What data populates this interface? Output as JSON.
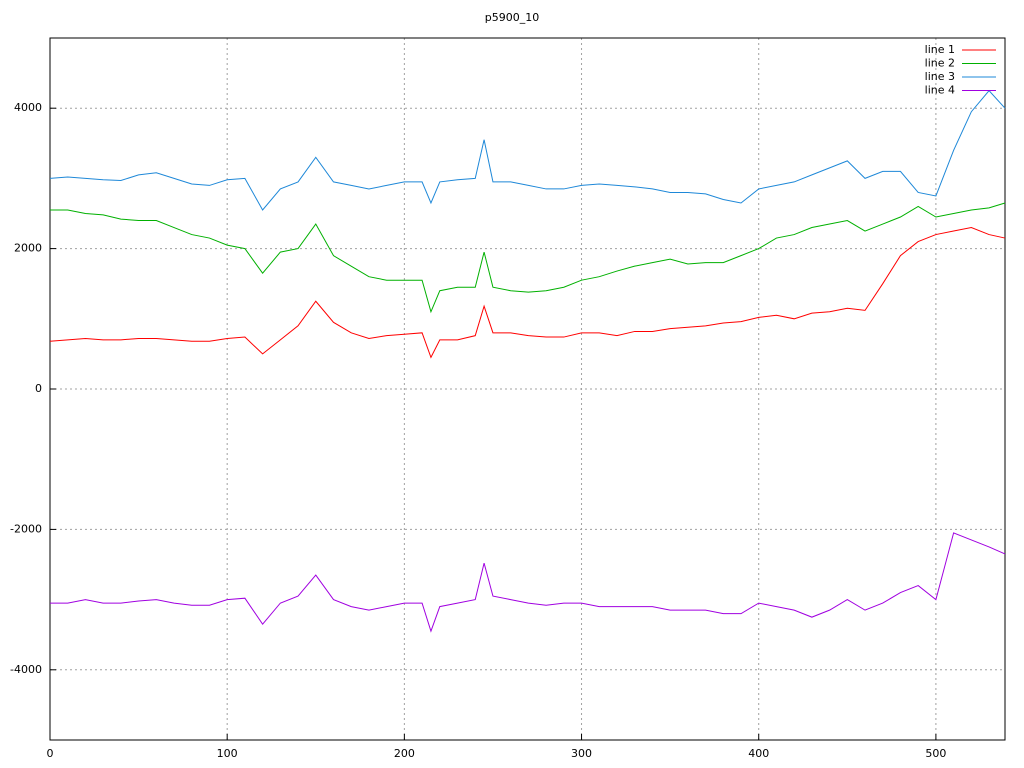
{
  "chart_data": {
    "type": "line",
    "title": "p5900_10",
    "x": [
      0,
      10,
      20,
      30,
      40,
      50,
      60,
      70,
      80,
      90,
      100,
      110,
      120,
      130,
      140,
      150,
      160,
      170,
      180,
      190,
      200,
      210,
      215,
      220,
      230,
      240,
      245,
      250,
      260,
      270,
      280,
      290,
      300,
      310,
      320,
      330,
      340,
      350,
      360,
      370,
      380,
      390,
      400,
      410,
      420,
      430,
      440,
      450,
      460,
      470,
      480,
      490,
      500,
      510,
      520,
      530,
      539
    ],
    "series": [
      {
        "name": "line 1",
        "color": "#ff0000",
        "values": [
          680,
          700,
          720,
          700,
          700,
          720,
          720,
          700,
          680,
          680,
          720,
          740,
          500,
          700,
          900,
          1250,
          950,
          800,
          720,
          760,
          780,
          800,
          450,
          700,
          700,
          760,
          1180,
          800,
          800,
          760,
          740,
          740,
          800,
          800,
          760,
          820,
          820,
          860,
          880,
          900,
          940,
          960,
          1020,
          1050,
          1000,
          1080,
          1100,
          1150,
          1120,
          1500,
          1900,
          2100,
          2200,
          2250,
          2300,
          2200,
          2150
        ]
      },
      {
        "name": "line 2",
        "color": "#00b000",
        "values": [
          2550,
          2550,
          2500,
          2480,
          2420,
          2400,
          2400,
          2300,
          2200,
          2150,
          2050,
          2000,
          1650,
          1950,
          2000,
          2350,
          1900,
          1750,
          1600,
          1550,
          1550,
          1550,
          1100,
          1400,
          1450,
          1450,
          1950,
          1450,
          1400,
          1380,
          1400,
          1450,
          1550,
          1600,
          1680,
          1750,
          1800,
          1850,
          1780,
          1800,
          1800,
          1900,
          2000,
          2150,
          2200,
          2300,
          2350,
          2400,
          2250,
          2350,
          2450,
          2600,
          2450,
          2500,
          2550,
          2580,
          2650
        ]
      },
      {
        "name": "line 3",
        "color": "#1e88d8",
        "values": [
          3000,
          3020,
          3000,
          2980,
          2970,
          3050,
          3080,
          3000,
          2920,
          2900,
          2980,
          3000,
          2550,
          2850,
          2950,
          3300,
          2950,
          2900,
          2850,
          2900,
          2950,
          2950,
          2650,
          2950,
          2980,
          3000,
          3550,
          2950,
          2950,
          2900,
          2850,
          2850,
          2900,
          2920,
          2900,
          2880,
          2850,
          2800,
          2800,
          2780,
          2700,
          2650,
          2850,
          2900,
          2950,
          3050,
          3150,
          3250,
          3000,
          3100,
          3100,
          2800,
          2750,
          3400,
          3950,
          4250,
          4000
        ]
      },
      {
        "name": "line 4",
        "color": "#a000e0",
        "values": [
          -3050,
          -3050,
          -3000,
          -3050,
          -3050,
          -3020,
          -3000,
          -3050,
          -3080,
          -3080,
          -3000,
          -2980,
          -3350,
          -3050,
          -2950,
          -2650,
          -3000,
          -3100,
          -3150,
          -3100,
          -3050,
          -3050,
          -3450,
          -3100,
          -3050,
          -3000,
          -2480,
          -2950,
          -3000,
          -3050,
          -3080,
          -3050,
          -3050,
          -3100,
          -3100,
          -3100,
          -3100,
          -3150,
          -3150,
          -3150,
          -3200,
          -3200,
          -3050,
          -3100,
          -3150,
          -3250,
          -3150,
          -3000,
          -3150,
          -3050,
          -2900,
          -2800,
          -3000,
          -2050,
          -2150,
          -2250,
          -2350
        ]
      }
    ],
    "xlim": [
      0,
      539
    ],
    "ylim": [
      -5000,
      5000
    ],
    "xticks": [
      0,
      100,
      200,
      300,
      400,
      500
    ],
    "yticks": [
      -4000,
      -2000,
      0,
      2000,
      4000
    ],
    "grid": true,
    "legend": "top-right"
  }
}
